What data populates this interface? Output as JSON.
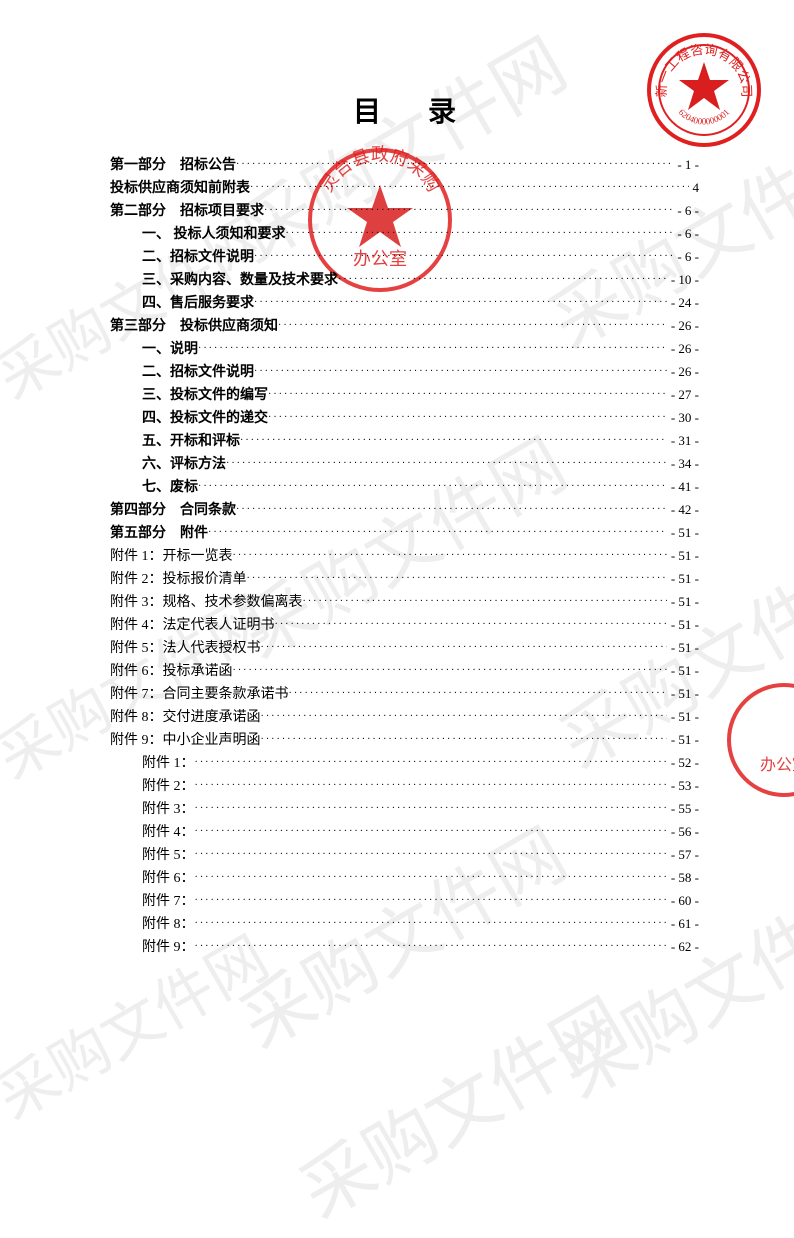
{
  "title": "目 录",
  "watermark_text": "采购文件网",
  "stamp_colors": {
    "red": "#e02020",
    "red_fill": "#d81e1e"
  },
  "toc": [
    {
      "label": "第一部分　招标公告",
      "page": "- 1 -",
      "bold": true,
      "indent": 0
    },
    {
      "label": "投标供应商须知前附表",
      "page": "4",
      "bold": true,
      "indent": 0
    },
    {
      "label": "第二部分　招标项目要求",
      "page": "- 6 -",
      "bold": true,
      "indent": 0
    },
    {
      "label": "一、 投标人须知和要求",
      "page": "- 6 -",
      "bold": true,
      "indent": 1
    },
    {
      "label": "二、招标文件说明",
      "page": "- 6 -",
      "bold": true,
      "indent": 1
    },
    {
      "label": "三、采购内容、数量及技术要求",
      "page": "- 10 -",
      "bold": true,
      "indent": 1
    },
    {
      "label": "四、售后服务要求",
      "page": "- 24 -",
      "bold": true,
      "indent": 1
    },
    {
      "label": "第三部分　投标供应商须知",
      "page": "- 26 -",
      "bold": true,
      "indent": 0
    },
    {
      "label": "一、说明",
      "page": "- 26 -",
      "bold": true,
      "indent": 1
    },
    {
      "label": "二、招标文件说明",
      "page": "- 26 -",
      "bold": true,
      "indent": 1
    },
    {
      "label": "三、投标文件的编写",
      "page": "- 27 -",
      "bold": true,
      "indent": 1
    },
    {
      "label": "四、投标文件的递交",
      "page": "- 30 -",
      "bold": true,
      "indent": 1
    },
    {
      "label": "五、开标和评标",
      "page": "- 31 -",
      "bold": true,
      "indent": 1
    },
    {
      "label": "六、评标方法",
      "page": "- 34 -",
      "bold": true,
      "indent": 1
    },
    {
      "label": "七、废标",
      "page": "- 41 -",
      "bold": true,
      "indent": 1
    },
    {
      "label": "第四部分　合同条款",
      "page": "- 42 -",
      "bold": true,
      "indent": 0
    },
    {
      "label": "第五部分　附件",
      "page": "- 51 -",
      "bold": true,
      "indent": 0
    },
    {
      "label": "附件 1：开标一览表",
      "page": "- 51 -",
      "bold": false,
      "indent": 0
    },
    {
      "label": "附件 2：投标报价清单",
      "page": "- 51 -",
      "bold": false,
      "indent": 0
    },
    {
      "label": "附件 3：规格、技术参数偏离表",
      "page": "- 51 -",
      "bold": false,
      "indent": 0
    },
    {
      "label": "附件 4：法定代表人证明书",
      "page": "- 51 -",
      "bold": false,
      "indent": 0
    },
    {
      "label": "附件 5：法人代表授权书",
      "page": "- 51 -",
      "bold": false,
      "indent": 0
    },
    {
      "label": "附件 6：投标承诺函",
      "page": "- 51 -",
      "bold": false,
      "indent": 0
    },
    {
      "label": "附件 7：合同主要条款承诺书",
      "page": "- 51 -",
      "bold": false,
      "indent": 0
    },
    {
      "label": "附件 8：交付进度承诺函",
      "page": "- 51 -",
      "bold": false,
      "indent": 0
    },
    {
      "label": "附件 9：中小企业声明函",
      "page": "- 51 -",
      "bold": false,
      "indent": 0
    },
    {
      "label": "附件 1：",
      "page": "- 52 -",
      "bold": false,
      "indent": 2
    },
    {
      "label": "附件 2：",
      "page": "- 53 -",
      "bold": false,
      "indent": 2
    },
    {
      "label": "附件 3：",
      "page": "- 55 -",
      "bold": false,
      "indent": 2
    },
    {
      "label": "附件 4：",
      "page": "- 56 -",
      "bold": false,
      "indent": 2
    },
    {
      "label": "附件 5：",
      "page": "- 57 -",
      "bold": false,
      "indent": 2
    },
    {
      "label": "附件 6：",
      "page": "- 58 -",
      "bold": false,
      "indent": 2
    },
    {
      "label": "附件 7：",
      "page": "- 60 -",
      "bold": false,
      "indent": 2
    },
    {
      "label": "附件 8：",
      "page": "- 61 -",
      "bold": false,
      "indent": 2
    },
    {
      "label": "附件 9：",
      "page": "- 62 -",
      "bold": false,
      "indent": 2
    }
  ]
}
